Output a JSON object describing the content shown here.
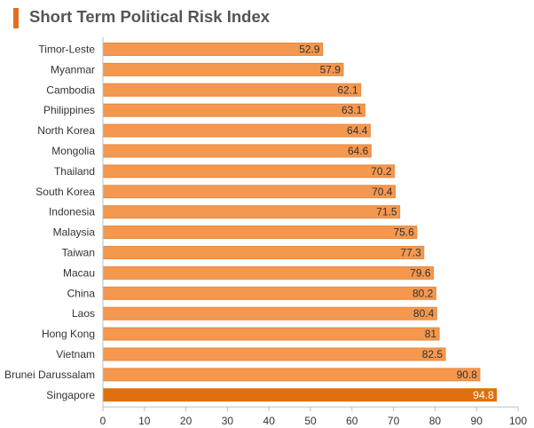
{
  "chart_data": {
    "type": "bar",
    "orientation": "horizontal",
    "title": "Short Term Political Risk Index",
    "categories": [
      "Timor-Leste",
      "Myanmar",
      "Cambodia",
      "Philippines",
      "North Korea",
      "Mongolia",
      "Thailand",
      "South Korea",
      "Indonesia",
      "Malaysia",
      "Taiwan",
      "Macau",
      "China",
      "Laos",
      "Hong Kong",
      "Vietnam",
      "Brunei Darussalam",
      "Singapore"
    ],
    "values": [
      52.9,
      57.9,
      62.1,
      63.1,
      64.4,
      64.6,
      70.2,
      70.4,
      71.5,
      75.6,
      77.3,
      79.6,
      80.2,
      80.4,
      81,
      82.5,
      90.8,
      94.8
    ],
    "value_labels": [
      "52.9",
      "57.9",
      "62.1",
      "63.1",
      "64.4",
      "64.6",
      "70.2",
      "70.4",
      "71.5",
      "75.6",
      "77.3",
      "79.6",
      "80.2",
      "80.4",
      "81",
      "82.5",
      "90.8",
      "94.8"
    ],
    "highlighted_category": "Singapore",
    "xlim": [
      0,
      100
    ],
    "xticks": [
      "0",
      "10",
      "20",
      "30",
      "40",
      "50",
      "60",
      "70",
      "80",
      "90",
      "100"
    ],
    "grid": false,
    "colors": {
      "bar": "#f4984f",
      "bar_stroke": "#e8883c",
      "highlight": "#e0700f",
      "title_accent": "#e07020"
    }
  }
}
